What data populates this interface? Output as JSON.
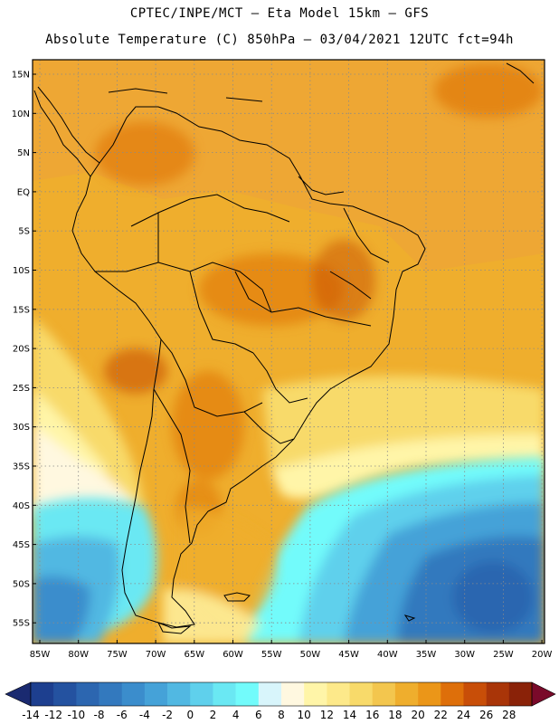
{
  "titles": {
    "line1": "CPTEC/INPE/MCT –  Eta Model 15km – GFS",
    "line2": "Absolute Temperature (C) 850hPa – 03/04/2021 12UTC fct=94h"
  },
  "axes": {
    "lat_labels": [
      "15N",
      "10N",
      "5N",
      "EQ",
      "5S",
      "10S",
      "15S",
      "20S",
      "25S",
      "30S",
      "35S",
      "40S",
      "45S",
      "50S",
      "55S"
    ],
    "lon_labels": [
      "85W",
      "80W",
      "75W",
      "70W",
      "65W",
      "60W",
      "55W",
      "50W",
      "45W",
      "40W",
      "35W",
      "30W",
      "25W",
      "20W"
    ]
  },
  "colorbar": {
    "labels": [
      "-14",
      "-12",
      "-10",
      "-8",
      "-6",
      "-4",
      "-2",
      "0",
      "2",
      "4",
      "6",
      "8",
      "10",
      "12",
      "14",
      "16",
      "18",
      "20",
      "22",
      "24",
      "26",
      "28"
    ],
    "colors": [
      "#1d3f8f",
      "#2452a0",
      "#2c66b0",
      "#3379be",
      "#3b8dcc",
      "#45a2d8",
      "#51b8e2",
      "#5fd0ec",
      "#6ae8f3",
      "#72fbfb",
      "#d8f5fb",
      "#fff8e0",
      "#fff5a8",
      "#fde98a",
      "#f8da6a",
      "#f3c64e",
      "#efae2d",
      "#eb9618",
      "#de6f0a",
      "#c84e08",
      "#a93508",
      "#8a2208"
    ],
    "low_end_color": "#1a2a70",
    "high_end_color": "#7a0a2a"
  }
}
